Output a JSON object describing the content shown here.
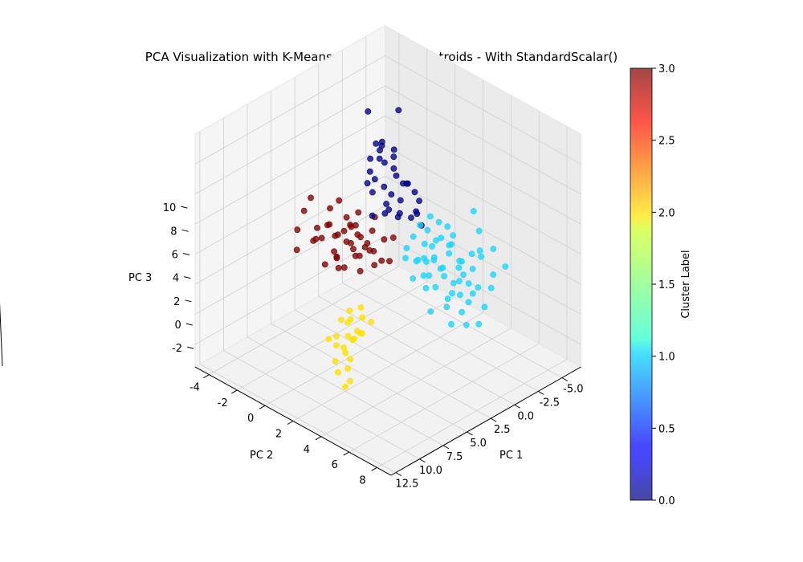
{
  "chart_data": {
    "type": "scatter",
    "projection": "3d",
    "title": "PCA Visualization with K-Means Clusters and Centroids - With StandardScalar()",
    "xlabel": "PC 1",
    "ylabel": "PC 2",
    "zlabel": "PC 3",
    "xlim": [
      -7,
      13
    ],
    "ylim": [
      -5,
      9
    ],
    "zlim": [
      -3.5,
      12
    ],
    "x_ticks": [
      "12.5",
      "10.0",
      "7.5",
      "5.0",
      "2.5",
      "0.0",
      "-2.5",
      "-5.0"
    ],
    "x_tick_values": [
      12.5,
      10.0,
      7.5,
      5.0,
      2.5,
      0.0,
      -2.5,
      -5.0
    ],
    "y_ticks": [
      "-4",
      "-2",
      "0",
      "2",
      "4",
      "6",
      "8"
    ],
    "y_tick_values": [
      -4,
      -2,
      0,
      2,
      4,
      6,
      8
    ],
    "z_ticks": [
      "-2",
      "0",
      "2",
      "4",
      "6",
      "8",
      "10"
    ],
    "z_tick_values": [
      -2,
      0,
      2,
      4,
      6,
      8,
      10
    ],
    "grid": true,
    "colorbar": {
      "label": "Cluster Label",
      "range": [
        0,
        3
      ],
      "ticks": [
        "0.0",
        "0.5",
        "1.0",
        "1.5",
        "2.0",
        "2.5",
        "3.0"
      ],
      "tick_values": [
        0,
        0.5,
        1.0,
        1.5,
        2.0,
        2.5,
        3.0
      ],
      "colormap": "jet"
    },
    "colors": {
      "cluster_0": "#00008b",
      "cluster_1": "#1ad5ff",
      "cluster_2": "#ffe000",
      "cluster_3": "#800000"
    },
    "series": [
      {
        "cluster": 0,
        "points": [
          [
            -3.5,
            -3.0,
            6.0
          ],
          [
            -3.0,
            -3.5,
            8.5
          ],
          [
            -4.0,
            -2.0,
            9.0
          ],
          [
            -3.0,
            -2.5,
            7.0
          ],
          [
            -2.0,
            -2.0,
            6.5
          ],
          [
            -1.5,
            -1.5,
            7.8
          ],
          [
            -2.5,
            -3.0,
            5.8
          ],
          [
            -3.0,
            -1.0,
            5.0
          ],
          [
            -2.0,
            -0.5,
            4.5
          ],
          [
            -1.0,
            -1.0,
            5.5
          ],
          [
            -2.5,
            -1.5,
            4.2
          ],
          [
            -1.0,
            0.0,
            4.0
          ],
          [
            -0.5,
            -0.5,
            4.8
          ],
          [
            -3.5,
            -2.0,
            5.3
          ],
          [
            -4.0,
            -3.0,
            5.0
          ],
          [
            -2.0,
            -2.5,
            4.0
          ],
          [
            -1.5,
            -1.0,
            3.8
          ],
          [
            -3.0,
            0.0,
            3.5
          ],
          [
            -0.5,
            -1.5,
            3.5
          ],
          [
            -2.0,
            1.0,
            3.6
          ],
          [
            -5.0,
            -3.0,
            5.5
          ],
          [
            -1.0,
            -2.0,
            6.0
          ],
          [
            -3.5,
            -0.5,
            4.5
          ],
          [
            -2.5,
            0.5,
            4.8
          ],
          [
            -1.8,
            -2.2,
            5.1
          ],
          [
            -4.5,
            -2.5,
            4.2
          ],
          [
            -3.2,
            -1.8,
            6.3
          ],
          [
            -2.2,
            -0.2,
            5.7
          ],
          [
            -1.2,
            0.8,
            4.3
          ],
          [
            -0.8,
            -0.8,
            3.9
          ],
          [
            -2.8,
            -2.8,
            6.8
          ],
          [
            -3.8,
            -1.2,
            4.6
          ],
          [
            -1.6,
            -2.6,
            4.7
          ],
          [
            -2.6,
            0.2,
            3.9
          ],
          [
            -0.6,
            0.4,
            4.6
          ]
        ]
      },
      {
        "cluster": 1,
        "points": [
          [
            -4.0,
            1.0,
            0.0
          ],
          [
            -5.0,
            0.0,
            1.0
          ],
          [
            -4.5,
            2.0,
            -0.5
          ],
          [
            -3.5,
            1.5,
            0.5
          ],
          [
            -3.0,
            0.5,
            0.8
          ],
          [
            -5.5,
            1.5,
            0.2
          ],
          [
            -6.0,
            1.0,
            -0.2
          ],
          [
            -4.2,
            2.5,
            0.3
          ],
          [
            -3.8,
            0.0,
            1.2
          ],
          [
            -2.5,
            1.0,
            1.0
          ],
          [
            -2.0,
            2.0,
            0.0
          ],
          [
            -3.0,
            2.5,
            -0.5
          ],
          [
            -4.8,
            0.5,
            1.5
          ],
          [
            -5.2,
            2.2,
            -0.8
          ],
          [
            -3.2,
            1.8,
            0.2
          ],
          [
            -2.8,
            0.2,
            0.6
          ],
          [
            -4.6,
            1.2,
            0.9
          ],
          [
            -3.6,
            2.2,
            -0.2
          ],
          [
            -2.2,
            1.4,
            0.4
          ],
          [
            -5.8,
            0.4,
            0.6
          ],
          [
            -4.4,
            -0.2,
            1.8
          ],
          [
            -3.4,
            0.8,
            1.6
          ],
          [
            -2.4,
            2.6,
            -0.6
          ],
          [
            -6.2,
            1.8,
            -0.4
          ],
          [
            -5.6,
            2.6,
            -1.0
          ],
          [
            -4.0,
            3.0,
            -1.2
          ],
          [
            -3.0,
            3.2,
            -1.4
          ],
          [
            -2.0,
            2.8,
            -0.9
          ],
          [
            -1.5,
            1.5,
            0.7
          ],
          [
            -1.0,
            2.0,
            0.3
          ],
          [
            -4.9,
            1.7,
            0.1
          ],
          [
            -3.9,
            0.6,
            0.4
          ],
          [
            -2.9,
            1.3,
            1.3
          ],
          [
            -1.9,
            0.7,
            1.1
          ],
          [
            -5.3,
            0.9,
            1.1
          ],
          [
            -6.5,
            0.2,
            0.9
          ],
          [
            -6.8,
            2.0,
            0.3
          ],
          [
            -7.0,
            1.2,
            0.0
          ],
          [
            -6.6,
            3.0,
            -0.3
          ],
          [
            -5.8,
            3.4,
            -0.7
          ],
          [
            -4.8,
            3.6,
            -1.5
          ],
          [
            -3.6,
            4.0,
            -2.0
          ],
          [
            -2.6,
            3.8,
            -1.8
          ],
          [
            -1.6,
            3.4,
            -1.6
          ],
          [
            -0.6,
            2.6,
            -0.8
          ],
          [
            -0.8,
            1.2,
            0.6
          ],
          [
            -1.2,
            0.4,
            1.4
          ],
          [
            -2.2,
            -0.2,
            1.4
          ],
          [
            -3.2,
            -0.4,
            1.7
          ],
          [
            -4.2,
            -0.6,
            2.0
          ],
          [
            -5.0,
            -0.4,
            2.4
          ],
          [
            -5.6,
            -0.2,
            1.9
          ],
          [
            -6.2,
            0.0,
            1.5
          ],
          [
            -4.6,
            2.9,
            -0.9
          ],
          [
            -3.4,
            2.8,
            -0.6
          ],
          [
            -6.6,
            1.6,
            3.2
          ],
          [
            -6.0,
            2.4,
            2.5
          ],
          [
            -5.2,
            3.0,
            1.8
          ],
          [
            -6.9,
            2.8,
            1.2
          ],
          [
            -7.0,
            3.6,
            0.4
          ]
        ]
      },
      {
        "cluster": 2,
        "points": [
          [
            4.0,
            0.0,
            -1.0
          ],
          [
            5.0,
            0.5,
            -1.5
          ],
          [
            6.0,
            1.0,
            -2.0
          ],
          [
            5.5,
            0.0,
            -2.2
          ],
          [
            4.5,
            1.0,
            -1.2
          ],
          [
            3.5,
            0.5,
            -0.8
          ],
          [
            6.5,
            1.5,
            -2.6
          ],
          [
            7.0,
            2.0,
            -3.0
          ],
          [
            7.5,
            2.0,
            -3.2
          ],
          [
            5.2,
            -0.2,
            -1.8
          ],
          [
            4.8,
            0.8,
            -1.6
          ],
          [
            5.8,
            1.2,
            -2.4
          ],
          [
            3.8,
            -0.2,
            -0.6
          ],
          [
            4.2,
            0.6,
            -1.4
          ],
          [
            6.2,
            0.4,
            -2.8
          ],
          [
            5.0,
            1.5,
            -0.8
          ],
          [
            4.4,
            -0.4,
            -1.1
          ],
          [
            5.6,
            0.6,
            -2.0
          ],
          [
            3.2,
            0.2,
            -0.4
          ],
          [
            6.8,
            1.0,
            -3.0
          ],
          [
            4.6,
            0.2,
            -0.9
          ],
          [
            5.4,
            1.1,
            -1.3
          ],
          [
            6.0,
            -0.2,
            -1.7
          ],
          [
            3.6,
            1.2,
            -0.7
          ]
        ]
      },
      {
        "cluster": 3,
        "points": [
          [
            2.0,
            -3.0,
            3.0
          ],
          [
            1.0,
            -2.5,
            2.5
          ],
          [
            0.0,
            -2.0,
            2.0
          ],
          [
            1.5,
            -1.5,
            2.0
          ],
          [
            2.5,
            -2.0,
            1.5
          ],
          [
            0.5,
            -1.0,
            1.8
          ],
          [
            -0.5,
            -1.5,
            2.5
          ],
          [
            1.0,
            -3.5,
            3.5
          ],
          [
            2.5,
            -3.5,
            2.0
          ],
          [
            3.0,
            -2.5,
            1.0
          ],
          [
            0.0,
            -0.5,
            1.2
          ],
          [
            -1.0,
            -1.0,
            2.0
          ],
          [
            1.8,
            -0.8,
            1.0
          ],
          [
            2.2,
            -1.2,
            2.8
          ],
          [
            0.8,
            -2.2,
            3.0
          ],
          [
            -0.2,
            -2.8,
            2.2
          ],
          [
            1.2,
            -0.2,
            1.5
          ],
          [
            2.8,
            -1.8,
            1.8
          ],
          [
            0.4,
            -1.8,
            1.0
          ],
          [
            1.6,
            -2.8,
            1.2
          ],
          [
            3.5,
            -3.0,
            2.5
          ],
          [
            4.0,
            -3.8,
            3.0
          ],
          [
            3.0,
            -4.0,
            3.8
          ],
          [
            2.0,
            -4.2,
            4.2
          ],
          [
            0.5,
            -3.2,
            4.0
          ],
          [
            -0.5,
            -2.5,
            3.2
          ],
          [
            1.4,
            -1.4,
            3.6
          ],
          [
            2.6,
            -0.6,
            2.4
          ],
          [
            0.2,
            0.2,
            1.6
          ],
          [
            -0.8,
            -0.2,
            2.6
          ],
          [
            1.0,
            -1.0,
            2.2
          ],
          [
            1.8,
            -2.4,
            2.6
          ],
          [
            0.6,
            -2.6,
            1.6
          ],
          [
            2.4,
            -2.6,
            3.4
          ],
          [
            1.2,
            -3.0,
            2.0
          ],
          [
            -0.2,
            -1.2,
            1.4
          ],
          [
            3.2,
            -1.4,
            1.4
          ],
          [
            2.0,
            -1.8,
            0.8
          ],
          [
            0.0,
            -3.0,
            2.8
          ],
          [
            1.5,
            -0.5,
            2.9
          ],
          [
            4.5,
            -3.5,
            2.0
          ],
          [
            3.8,
            -2.2,
            3.2
          ],
          [
            2.8,
            -3.2,
            3.0
          ],
          [
            -1.2,
            -1.8,
            3.0
          ],
          [
            0.9,
            -1.6,
            2.7
          ]
        ]
      }
    ]
  }
}
